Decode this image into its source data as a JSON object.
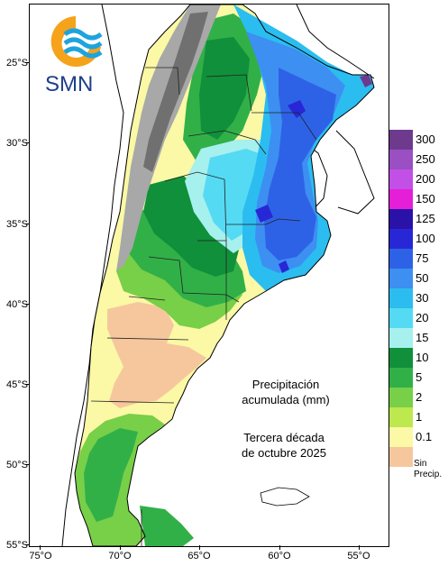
{
  "map": {
    "lat_labels": [
      "25°S",
      "30°S",
      "35°S",
      "40°S",
      "45°S",
      "50°S",
      "55°S"
    ],
    "lon_labels": [
      "75°O",
      "70°O",
      "65°O",
      "60°O",
      "55°O"
    ]
  },
  "legend": {
    "entries": [
      {
        "label": "300",
        "color": "#6e3a8e"
      },
      {
        "label": "250",
        "color": "#9a4fc3"
      },
      {
        "label": "200",
        "color": "#c24fe6"
      },
      {
        "label": "150",
        "color": "#e51ed8"
      },
      {
        "label": "125",
        "color": "#2a11a8"
      },
      {
        "label": "100",
        "color": "#2727d6"
      },
      {
        "label": "75",
        "color": "#2e62e6"
      },
      {
        "label": "50",
        "color": "#3d8ff2"
      },
      {
        "label": "30",
        "color": "#2bbdf0"
      },
      {
        "label": "20",
        "color": "#55daf4"
      },
      {
        "label": "15",
        "color": "#a6f0ee"
      },
      {
        "label": "10",
        "color": "#10903a"
      },
      {
        "label": "5",
        "color": "#32b048"
      },
      {
        "label": "2",
        "color": "#78cf48"
      },
      {
        "label": "1",
        "color": "#bde84e"
      },
      {
        "label": "0.1",
        "color": "#fbf8a6"
      }
    ],
    "nodata": {
      "label_line1": "Sin",
      "label_line2": "Precip.",
      "color": "#f6c79d"
    }
  },
  "caption": {
    "title_line1": "Precipitación",
    "title_line2": "acumulada (mm)",
    "period_line1": "Tercera década",
    "period_line2": "de octubre 2025"
  },
  "logo": {
    "text": "SMN",
    "icon": "smn-logo-icon",
    "color_orange": "#f5a31b",
    "color_blue": "#1ea4dd"
  }
}
